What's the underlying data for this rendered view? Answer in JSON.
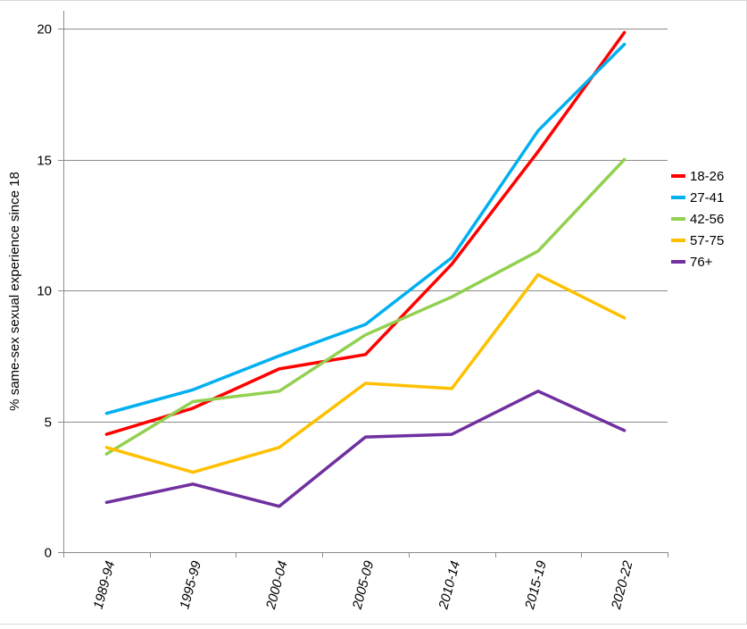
{
  "chart_data": {
    "type": "line",
    "categories": [
      "1989-94",
      "1995-99",
      "2000-04",
      "2005-09",
      "2010-14",
      "2015-19",
      "2020-22"
    ],
    "series": [
      {
        "name": "18-26",
        "color": "#ff0000",
        "values": [
          4.5,
          5.5,
          7.0,
          7.55,
          11.0,
          15.3,
          19.85
        ]
      },
      {
        "name": "27-41",
        "color": "#00b0f0",
        "values": [
          5.3,
          6.2,
          7.5,
          8.7,
          11.25,
          16.1,
          19.4
        ]
      },
      {
        "name": "42-56",
        "color": "#92d050",
        "values": [
          3.75,
          5.75,
          6.15,
          8.3,
          9.75,
          11.5,
          15.0
        ]
      },
      {
        "name": "57-75",
        "color": "#ffc000",
        "values": [
          4.0,
          3.05,
          4.0,
          6.45,
          6.25,
          10.6,
          8.95
        ]
      },
      {
        "name": "76+",
        "color": "#7030a0",
        "values": [
          1.9,
          2.6,
          1.75,
          4.4,
          4.5,
          6.15,
          4.65
        ]
      }
    ],
    "title": "",
    "xlabel": "",
    "ylabel": "% same-sex sexual experience since 18",
    "ylim": [
      0,
      20
    ],
    "yticks": [
      "0",
      "5",
      "10",
      "15",
      "20"
    ],
    "grid": "horizontal",
    "legend": "right"
  }
}
